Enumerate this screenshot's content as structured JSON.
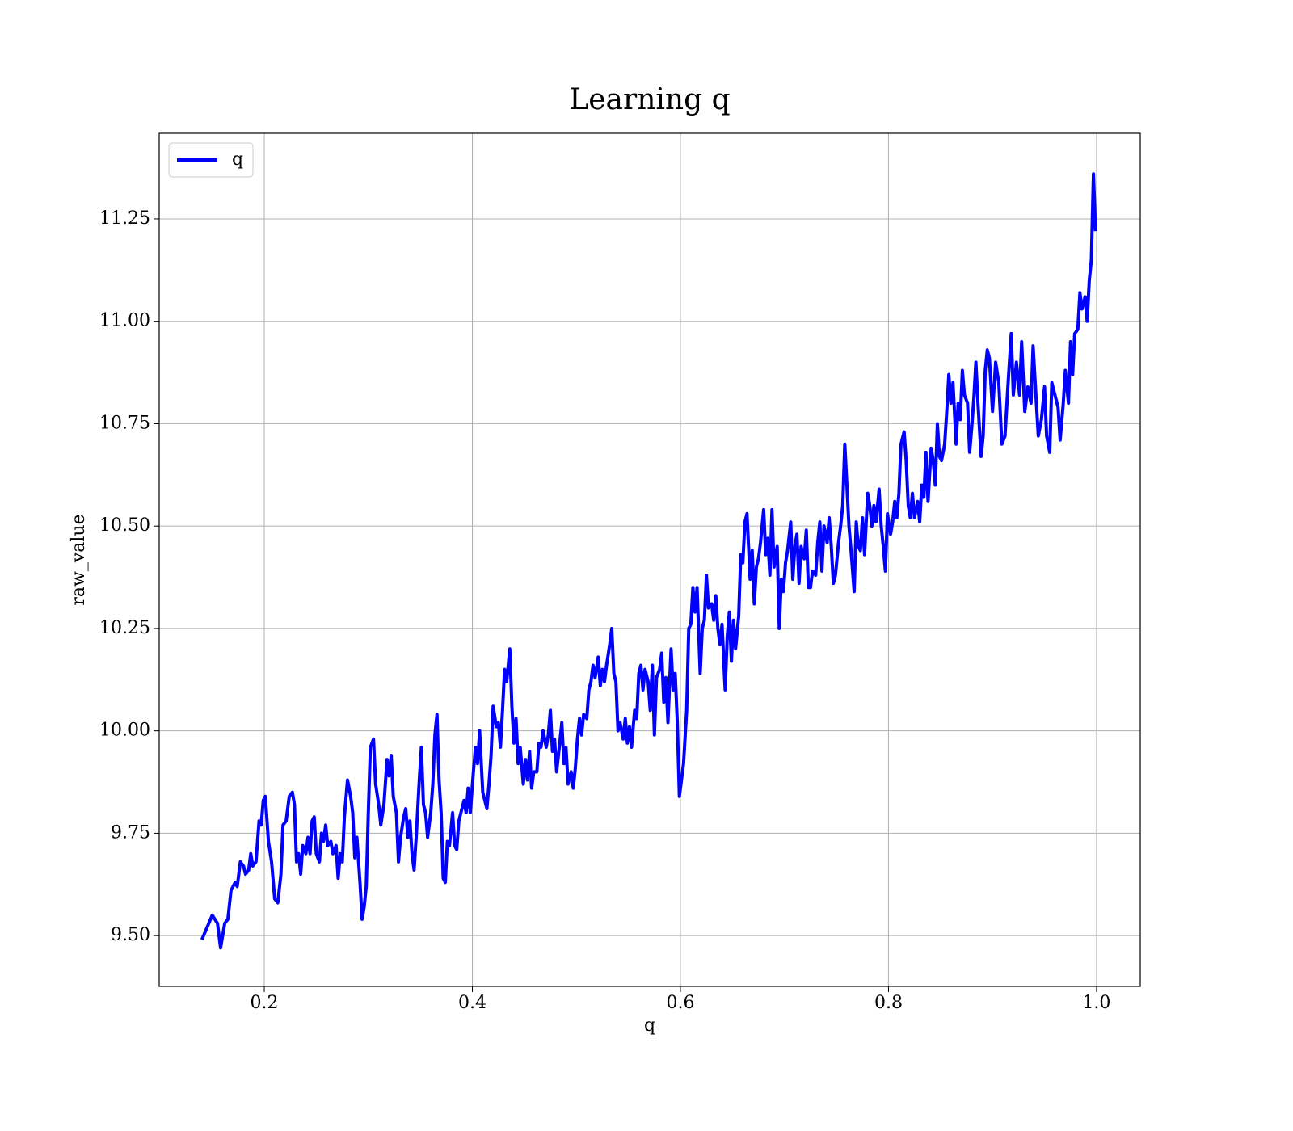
{
  "chart_data": {
    "type": "line",
    "title": "Learning q",
    "xlabel": "q",
    "ylabel": "raw_value",
    "x": [
      0.14,
      0.15,
      0.155,
      0.158,
      0.162,
      0.165,
      0.168,
      0.172,
      0.174,
      0.177,
      0.18,
      0.182,
      0.185,
      0.187,
      0.189,
      0.192,
      0.195,
      0.197,
      0.199,
      0.201,
      0.204,
      0.207,
      0.21,
      0.213,
      0.216,
      0.218,
      0.221,
      0.224,
      0.227,
      0.229,
      0.231,
      0.233,
      0.235,
      0.237,
      0.24,
      0.242,
      0.244,
      0.246,
      0.248,
      0.25,
      0.253,
      0.255,
      0.257,
      0.259,
      0.261,
      0.264,
      0.266,
      0.269,
      0.271,
      0.273,
      0.275,
      0.277,
      0.28,
      0.283,
      0.285,
      0.287,
      0.289,
      0.292,
      0.294,
      0.296,
      0.298,
      0.3,
      0.302,
      0.305,
      0.307,
      0.31,
      0.312,
      0.315,
      0.318,
      0.32,
      0.322,
      0.324,
      0.327,
      0.329,
      0.331,
      0.334,
      0.336,
      0.338,
      0.34,
      0.342,
      0.344,
      0.346,
      0.349,
      0.351,
      0.353,
      0.355,
      0.357,
      0.36,
      0.362,
      0.364,
      0.366,
      0.368,
      0.37,
      0.372,
      0.374,
      0.376,
      0.378,
      0.381,
      0.383,
      0.385,
      0.387,
      0.389,
      0.392,
      0.394,
      0.396,
      0.398,
      0.401,
      0.403,
      0.405,
      0.407,
      0.41,
      0.412,
      0.414,
      0.416,
      0.418,
      0.42,
      0.423,
      0.425,
      0.427,
      0.429,
      0.431,
      0.433,
      0.436,
      0.438,
      0.44,
      0.442,
      0.444,
      0.446,
      0.449,
      0.451,
      0.453,
      0.455,
      0.457,
      0.459,
      0.462,
      0.464,
      0.466,
      0.468,
      0.471,
      0.473,
      0.475,
      0.477,
      0.479,
      0.481,
      0.484,
      0.486,
      0.488,
      0.49,
      0.492,
      0.495,
      0.497,
      0.499,
      0.501,
      0.503,
      0.505,
      0.507,
      0.51,
      0.512,
      0.514,
      0.516,
      0.518,
      0.521,
      0.523,
      0.525,
      0.527,
      0.529,
      0.532,
      0.534,
      0.536,
      0.538,
      0.54,
      0.542,
      0.545,
      0.547,
      0.549,
      0.551,
      0.553,
      0.556,
      0.558,
      0.56,
      0.562,
      0.564,
      0.566,
      0.569,
      0.571,
      0.573,
      0.575,
      0.577,
      0.58,
      0.582,
      0.584,
      0.586,
      0.588,
      0.591,
      0.593,
      0.595,
      0.597,
      0.599,
      0.601,
      0.603,
      0.606,
      0.608,
      0.61,
      0.612,
      0.614,
      0.616,
      0.619,
      0.621,
      0.623,
      0.625,
      0.627,
      0.63,
      0.632,
      0.634,
      0.636,
      0.638,
      0.64,
      0.643,
      0.645,
      0.647,
      0.649,
      0.651,
      0.653,
      0.656,
      0.658,
      0.66,
      0.662,
      0.664,
      0.667,
      0.669,
      0.671,
      0.673,
      0.675,
      0.677,
      0.68,
      0.682,
      0.684,
      0.686,
      0.688,
      0.69,
      0.693,
      0.695,
      0.697,
      0.699,
      0.701,
      0.703,
      0.706,
      0.708,
      0.71,
      0.712,
      0.714,
      0.716,
      0.719,
      0.721,
      0.723,
      0.725,
      0.727,
      0.73,
      0.732,
      0.734,
      0.736,
      0.738,
      0.741,
      0.743,
      0.745,
      0.747,
      0.749,
      0.752,
      0.754,
      0.756,
      0.758,
      0.76,
      0.762,
      0.764,
      0.767,
      0.769,
      0.771,
      0.773,
      0.775,
      0.777,
      0.78,
      0.782,
      0.784,
      0.786,
      0.788,
      0.791,
      0.793,
      0.795,
      0.797,
      0.799,
      0.802,
      0.804,
      0.806,
      0.808,
      0.81,
      0.812,
      0.815,
      0.817,
      0.819,
      0.821,
      0.823,
      0.825,
      0.828,
      0.83,
      0.832,
      0.834,
      0.836,
      0.838,
      0.841,
      0.843,
      0.845,
      0.847,
      0.849,
      0.851,
      0.854,
      0.856,
      0.858,
      0.86,
      0.862,
      0.865,
      0.867,
      0.869,
      0.871,
      0.873,
      0.876,
      0.878,
      0.88,
      0.882,
      0.884,
      0.886,
      0.889,
      0.891,
      0.893,
      0.895,
      0.897,
      0.9,
      0.903,
      0.906,
      0.909,
      0.912,
      0.915,
      0.918,
      0.92,
      0.923,
      0.926,
      0.928,
      0.931,
      0.934,
      0.937,
      0.939,
      0.941,
      0.944,
      0.947,
      0.95,
      0.952,
      0.955,
      0.957,
      0.96,
      0.963,
      0.965,
      0.968,
      0.97,
      0.973,
      0.975,
      0.977,
      0.979,
      0.982,
      0.984,
      0.986,
      0.989,
      0.991,
      0.993,
      0.995,
      0.997,
      0.999
    ],
    "series": [
      {
        "name": "q",
        "color": "#0000ff",
        "values": [
          9.49,
          9.55,
          9.53,
          9.47,
          9.53,
          9.54,
          9.61,
          9.63,
          9.62,
          9.68,
          9.67,
          9.65,
          9.66,
          9.7,
          9.67,
          9.68,
          9.78,
          9.77,
          9.83,
          9.84,
          9.73,
          9.68,
          9.59,
          9.58,
          9.65,
          9.77,
          9.78,
          9.84,
          9.85,
          9.82,
          9.68,
          9.7,
          9.65,
          9.72,
          9.7,
          9.74,
          9.7,
          9.78,
          9.79,
          9.7,
          9.68,
          9.75,
          9.73,
          9.77,
          9.72,
          9.73,
          9.7,
          9.72,
          9.64,
          9.7,
          9.68,
          9.79,
          9.88,
          9.84,
          9.8,
          9.69,
          9.74,
          9.63,
          9.54,
          9.57,
          9.62,
          9.8,
          9.96,
          9.98,
          9.87,
          9.82,
          9.77,
          9.82,
          9.93,
          9.89,
          9.94,
          9.84,
          9.8,
          9.68,
          9.74,
          9.79,
          9.81,
          9.74,
          9.78,
          9.7,
          9.66,
          9.74,
          9.88,
          9.96,
          9.82,
          9.8,
          9.74,
          9.8,
          9.87,
          9.99,
          10.04,
          9.88,
          9.8,
          9.64,
          9.63,
          9.73,
          9.72,
          9.8,
          9.72,
          9.71,
          9.78,
          9.8,
          9.83,
          9.8,
          9.86,
          9.8,
          9.9,
          9.96,
          9.92,
          10.0,
          9.85,
          9.83,
          9.81,
          9.87,
          9.94,
          10.06,
          10.01,
          10.02,
          9.96,
          10.05,
          10.15,
          10.12,
          10.2,
          10.06,
          9.97,
          10.03,
          9.92,
          9.96,
          9.87,
          9.93,
          9.88,
          9.95,
          9.86,
          9.9,
          9.9,
          9.97,
          9.96,
          10.0,
          9.96,
          9.99,
          10.05,
          9.95,
          9.98,
          9.9,
          9.97,
          10.02,
          9.92,
          9.96,
          9.87,
          9.9,
          9.86,
          9.91,
          9.98,
          10.03,
          9.99,
          10.04,
          10.03,
          10.1,
          10.12,
          10.16,
          10.13,
          10.18,
          10.11,
          10.15,
          10.12,
          10.16,
          10.21,
          10.25,
          10.14,
          10.12,
          10.0,
          10.02,
          9.98,
          10.03,
          9.97,
          10.01,
          9.96,
          10.05,
          10.03,
          10.14,
          10.16,
          10.1,
          10.15,
          10.12,
          10.05,
          10.16,
          9.99,
          10.13,
          10.15,
          10.19,
          10.07,
          10.13,
          10.02,
          10.2,
          10.1,
          10.14,
          10.02,
          9.84,
          9.88,
          9.92,
          10.05,
          10.25,
          10.26,
          10.35,
          10.29,
          10.35,
          10.14,
          10.25,
          10.27,
          10.38,
          10.3,
          10.31,
          10.27,
          10.33,
          10.25,
          10.21,
          10.26,
          10.1,
          10.23,
          10.29,
          10.17,
          10.27,
          10.2,
          10.28,
          10.43,
          10.41,
          10.51,
          10.53,
          10.37,
          10.44,
          10.31,
          10.4,
          10.42,
          10.46,
          10.54,
          10.43,
          10.47,
          10.38,
          10.54,
          10.4,
          10.45,
          10.25,
          10.37,
          10.34,
          10.41,
          10.44,
          10.51,
          10.37,
          10.45,
          10.48,
          10.36,
          10.45,
          10.42,
          10.49,
          10.35,
          10.35,
          10.39,
          10.38,
          10.46,
          10.51,
          10.39,
          10.5,
          10.46,
          10.52,
          10.45,
          10.36,
          10.38,
          10.46,
          10.5,
          10.55,
          10.7,
          10.6,
          10.5,
          10.44,
          10.34,
          10.51,
          10.45,
          10.44,
          10.52,
          10.43,
          10.58,
          10.55,
          10.5,
          10.55,
          10.51,
          10.59,
          10.5,
          10.45,
          10.39,
          10.53,
          10.48,
          10.51,
          10.56,
          10.52,
          10.58,
          10.7,
          10.73,
          10.66,
          10.55,
          10.52,
          10.58,
          10.52,
          10.56,
          10.51,
          10.6,
          10.57,
          10.68,
          10.56,
          10.69,
          10.66,
          10.6,
          10.75,
          10.67,
          10.66,
          10.7,
          10.78,
          10.87,
          10.8,
          10.85,
          10.7,
          10.8,
          10.76,
          10.88,
          10.82,
          10.8,
          10.68,
          10.74,
          10.81,
          10.9,
          10.8,
          10.67,
          10.72,
          10.88,
          10.93,
          10.91,
          10.78,
          10.9,
          10.85,
          10.7,
          10.72,
          10.85,
          10.97,
          10.82,
          10.9,
          10.82,
          10.95,
          10.78,
          10.84,
          10.8,
          10.94,
          10.85,
          10.72,
          10.76,
          10.84,
          10.72,
          10.68,
          10.85,
          10.82,
          10.79,
          10.71,
          10.8,
          10.88,
          10.8,
          10.95,
          10.87,
          10.97,
          10.98,
          11.07,
          11.03,
          11.06,
          11.0,
          11.1,
          11.15,
          11.36,
          11.22
        ]
      }
    ],
    "xlim": [
      0.099,
      1.042
    ],
    "xticks": [
      0.2,
      0.4,
      0.6,
      0.8,
      {
        "value": 1.0,
        "label": "1.0"
      }
    ],
    "ylim": [
      9.376,
      11.459
    ],
    "yticks": [
      {
        "value": 9.5,
        "label": "9.50"
      },
      9.75,
      {
        "value": 10,
        "label": "10.00"
      },
      10.25,
      {
        "value": 10.5,
        "label": "10.50"
      },
      10.75,
      {
        "value": 11,
        "label": "11.00"
      },
      11.25
    ],
    "grid": true,
    "legend": "upper left"
  }
}
